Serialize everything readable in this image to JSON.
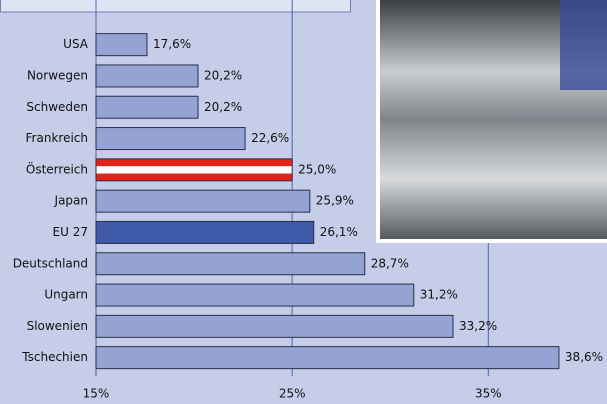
{
  "chart_data": {
    "type": "bar",
    "orientation": "horizontal",
    "categories": [
      "USA",
      "Norwegen",
      "Schweden",
      "Frankreich",
      "Österreich",
      "Japan",
      "EU 27",
      "Deutschland",
      "Ungarn",
      "Slowenien",
      "Tschechien"
    ],
    "values": [
      17.6,
      20.2,
      20.2,
      22.6,
      25.0,
      25.9,
      26.1,
      28.7,
      31.2,
      33.2,
      38.6
    ],
    "value_labels": [
      "17,6%",
      "20,2%",
      "20,2%",
      "22,6%",
      "25,0%",
      "25,9%",
      "26,1%",
      "28,7%",
      "31,2%",
      "33,2%",
      "38,6%"
    ],
    "colors": [
      "#94a3d4",
      "#94a3d4",
      "#94a3d4",
      "#94a3d4",
      "#e2231a",
      "#94a3d4",
      "#3e5aa8",
      "#94a3d4",
      "#94a3d4",
      "#94a3d4",
      "#94a3d4"
    ],
    "xlim": [
      15,
      41
    ],
    "xticks": [
      {
        "value": 15,
        "label": "15%"
      },
      {
        "value": 25,
        "label": "25%"
      },
      {
        "value": 35,
        "label": "35%"
      }
    ],
    "grid": true
  }
}
